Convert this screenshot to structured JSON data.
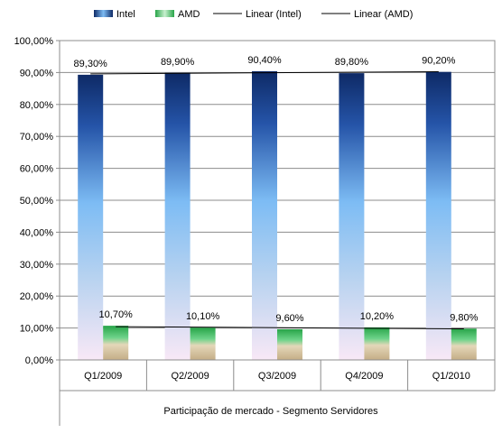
{
  "chart_data": {
    "type": "bar",
    "title": "",
    "xlabel": "Participação de mercado - Segmento Servidores",
    "ylabel": "",
    "categories": [
      "Q1/2009",
      "Q2/2009",
      "Q3/2009",
      "Q4/2009",
      "Q1/2010"
    ],
    "series": [
      {
        "name": "Intel",
        "values": [
          89.3,
          89.9,
          90.4,
          89.8,
          90.2
        ],
        "labels": [
          "89,30%",
          "89,90%",
          "90,40%",
          "89,80%",
          "90,20%"
        ],
        "color": "#1a3f8a"
      },
      {
        "name": "AMD",
        "values": [
          10.7,
          10.1,
          9.6,
          10.2,
          9.8
        ],
        "labels": [
          "10,70%",
          "10,10%",
          "9,60%",
          "10,20%",
          "9,80%"
        ],
        "color": "#2fb04f"
      }
    ],
    "trendlines": [
      {
        "name": "Linear (Intel)",
        "series": "Intel",
        "color": "#000000"
      },
      {
        "name": "Linear (AMD)",
        "series": "AMD",
        "color": "#000000"
      }
    ],
    "ylim": [
      0,
      100
    ],
    "yticks": [
      0,
      10,
      20,
      30,
      40,
      50,
      60,
      70,
      80,
      90,
      100
    ],
    "ytick_labels": [
      "0,00%",
      "10,00%",
      "20,00%",
      "30,00%",
      "40,00%",
      "50,00%",
      "60,00%",
      "70,00%",
      "80,00%",
      "90,00%",
      "100,00%"
    ],
    "grid": true,
    "legend": "top"
  }
}
